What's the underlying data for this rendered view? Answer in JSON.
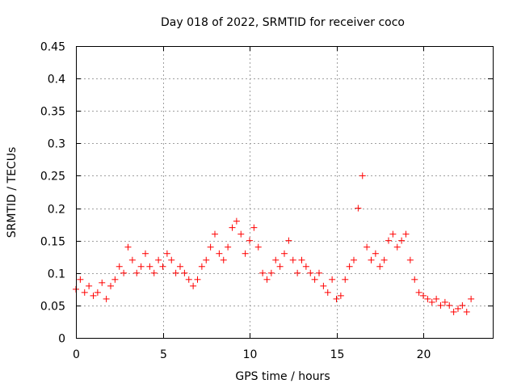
{
  "chart_data": {
    "type": "scatter",
    "title": "Day 018 of 2022, SRMTID for receiver coco",
    "xlabel": "GPS time / hours",
    "ylabel": "SRMTID / TECUs",
    "xlim": [
      0,
      24.0
    ],
    "ylim": [
      0,
      0.45
    ],
    "xticks": [
      0,
      5,
      10,
      15,
      20
    ],
    "xtick_labels": [
      "0",
      "5",
      "10",
      "15",
      "20"
    ],
    "yticks": [
      0,
      0.05,
      0.1,
      0.15,
      0.2,
      0.25,
      0.3,
      0.35,
      0.4,
      0.45
    ],
    "ytick_labels": [
      "0",
      "0.05",
      "0.1",
      "0.15",
      "0.2",
      "0.25",
      "0.3",
      "0.35",
      "0.4",
      "0.45"
    ],
    "grid": true,
    "marker": "+",
    "series": [
      {
        "name": "SRMTID",
        "color": "#ff0000",
        "x": [
          0.0,
          0.25,
          0.5,
          0.75,
          1.0,
          1.25,
          1.5,
          1.75,
          2.0,
          2.25,
          2.5,
          2.75,
          3.0,
          3.25,
          3.5,
          3.75,
          4.0,
          4.25,
          4.5,
          4.75,
          5.0,
          5.25,
          5.5,
          5.75,
          6.0,
          6.25,
          6.5,
          6.75,
          7.0,
          7.25,
          7.5,
          7.75,
          8.0,
          8.25,
          8.5,
          8.75,
          9.0,
          9.25,
          9.5,
          9.75,
          10.0,
          10.25,
          10.5,
          10.75,
          11.0,
          11.25,
          11.5,
          11.75,
          12.0,
          12.25,
          12.5,
          12.75,
          13.0,
          13.25,
          13.5,
          13.75,
          14.0,
          14.25,
          14.5,
          14.75,
          15.0,
          15.25,
          15.5,
          15.75,
          16.0,
          16.25,
          16.5,
          16.75,
          17.0,
          17.25,
          17.5,
          17.75,
          18.0,
          18.25,
          18.5,
          18.75,
          19.0,
          19.25,
          19.5,
          19.75,
          20.0,
          20.25,
          20.5,
          20.75,
          21.0,
          21.25,
          21.5,
          21.75,
          22.0,
          22.25,
          22.5,
          22.75
        ],
        "y": [
          0.075,
          0.09,
          0.07,
          0.08,
          0.065,
          0.07,
          0.085,
          0.06,
          0.08,
          0.09,
          0.11,
          0.1,
          0.14,
          0.12,
          0.1,
          0.11,
          0.13,
          0.11,
          0.1,
          0.12,
          0.11,
          0.13,
          0.12,
          0.1,
          0.11,
          0.1,
          0.09,
          0.08,
          0.09,
          0.11,
          0.12,
          0.14,
          0.16,
          0.13,
          0.12,
          0.14,
          0.17,
          0.18,
          0.16,
          0.13,
          0.15,
          0.17,
          0.14,
          0.1,
          0.09,
          0.1,
          0.12,
          0.11,
          0.13,
          0.15,
          0.12,
          0.1,
          0.12,
          0.11,
          0.1,
          0.09,
          0.1,
          0.08,
          0.07,
          0.09,
          0.06,
          0.065,
          0.09,
          0.11,
          0.12,
          0.2,
          0.25,
          0.14,
          0.12,
          0.13,
          0.11,
          0.12,
          0.15,
          0.16,
          0.14,
          0.15,
          0.16,
          0.12,
          0.09,
          0.07,
          0.065,
          0.06,
          0.055,
          0.06,
          0.05,
          0.055,
          0.05,
          0.04,
          0.045,
          0.05,
          0.04,
          0.06
        ]
      }
    ]
  }
}
